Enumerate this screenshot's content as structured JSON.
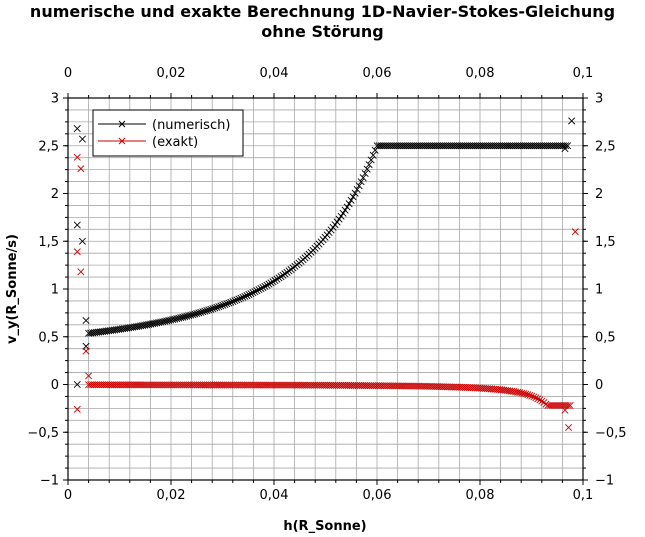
{
  "chart_data": {
    "type": "scatter",
    "title_line1": "numerische und exakte Berechnung 1D-Navier-Stokes-Gleichung",
    "title_line2": "ohne Störung",
    "xlabel": "h(R_Sonne)",
    "ylabel": "v_y(R_Sonne/s)",
    "xlim": [
      0,
      0.1
    ],
    "ylim": [
      -1,
      3
    ],
    "x_ticks": [
      0,
      0.02,
      0.04,
      0.06,
      0.08,
      0.1
    ],
    "x_tick_labels": [
      "0",
      "0,02",
      "0,04",
      "0,06",
      "0,08",
      "0,1"
    ],
    "y_ticks": [
      -1,
      -0.5,
      0,
      0.5,
      1,
      1.5,
      2,
      2.5,
      3
    ],
    "y_tick_labels": [
      "−1",
      "−0,5",
      "0",
      "0,5",
      "1",
      "1,5",
      "2",
      "2,5",
      "3"
    ],
    "grid": true,
    "legend_position": "top-left",
    "series": [
      {
        "name": "(numerisch)",
        "color": "#000000",
        "marker": "x",
        "isolated_points": [
          [
            0.0018,
            2.68
          ],
          [
            0.0028,
            2.57
          ],
          [
            0.0018,
            1.67
          ],
          [
            0.0028,
            1.5
          ],
          [
            0.0035,
            0.67
          ],
          [
            0.0035,
            0.4
          ],
          [
            0.0018,
            0.0
          ],
          [
            0.0965,
            2.47
          ],
          [
            0.0978,
            2.76
          ]
        ],
        "curve": {
          "x_start": 0.004,
          "x_end": 0.097,
          "count": 240,
          "model": "0.3 + 0.0006*(0.1-x)^-2.55, capped at 2.5"
        }
      },
      {
        "name": "(exakt)",
        "color": "#cc0000",
        "marker": "x",
        "isolated_points": [
          [
            0.0018,
            2.38
          ],
          [
            0.0025,
            2.26
          ],
          [
            0.0018,
            1.39
          ],
          [
            0.0025,
            1.18
          ],
          [
            0.0035,
            0.35
          ],
          [
            0.004,
            0.09
          ],
          [
            0.0018,
            -0.26
          ],
          [
            0.0965,
            -0.27
          ],
          [
            0.0972,
            -0.45
          ],
          [
            0.0985,
            1.6
          ]
        ],
        "curve": {
          "x_start": 0.004,
          "x_end": 0.0975,
          "count": 240,
          "model": "-0.00006*(0.1-x)^-1.65, floored at -0.22"
        }
      }
    ]
  }
}
